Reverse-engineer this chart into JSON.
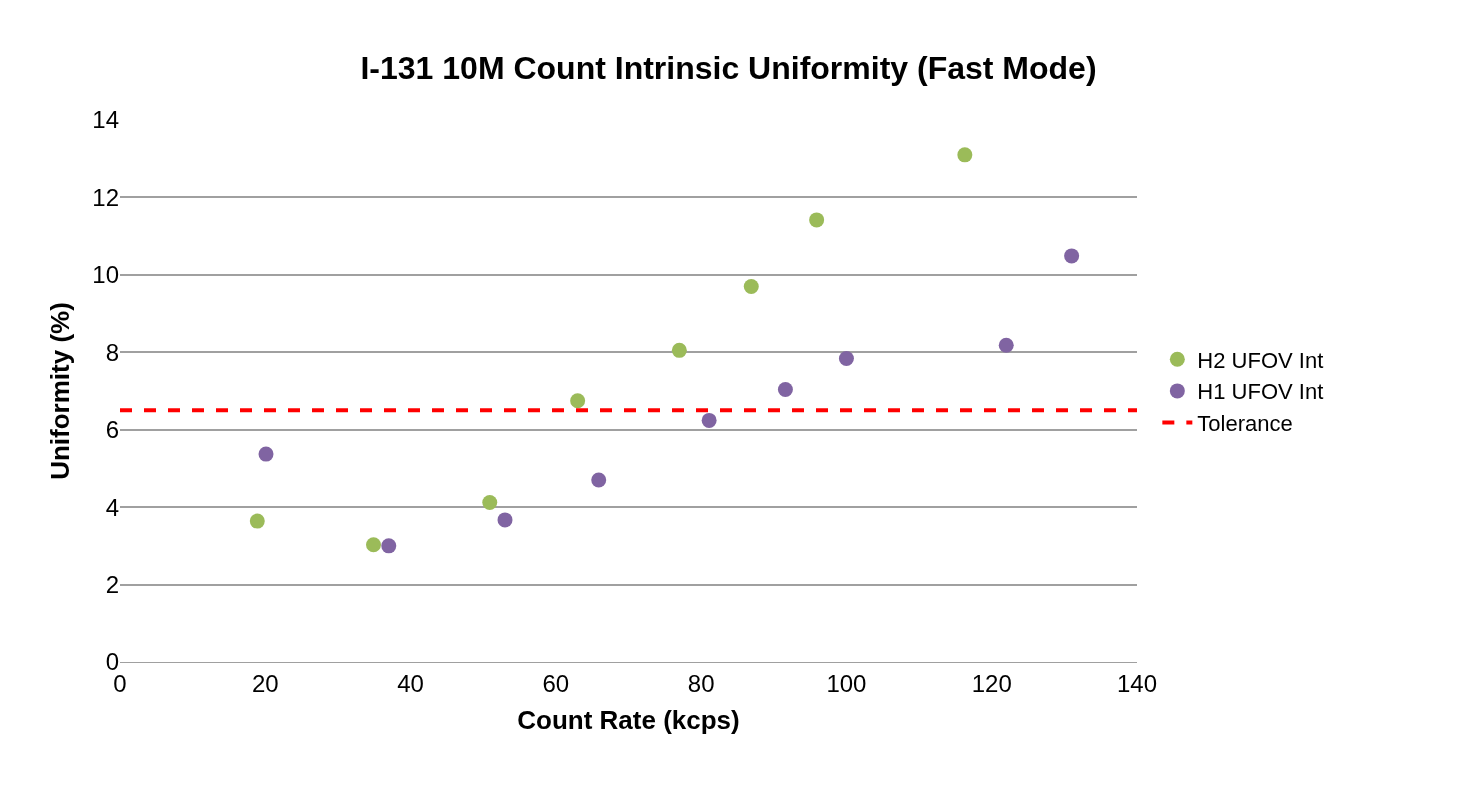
{
  "chart_data": {
    "type": "scatter",
    "title": "I-131 10M Count Intrinsic Uniformity (Fast Mode)",
    "xlabel": "Count Rate (kcps)",
    "ylabel": "Uniformity (%)",
    "xlim": [
      0,
      140
    ],
    "xticks": [
      0,
      20,
      40,
      60,
      80,
      100,
      120,
      140
    ],
    "ylim": [
      0,
      14
    ],
    "yticks": [
      0,
      2,
      4,
      6,
      8,
      10,
      12,
      14
    ],
    "grid": "y",
    "legend": "right",
    "marker": "circle",
    "series": [
      {
        "name": "H2 UFOV Int",
        "color": "#9bbb59",
        "x": [
          18.9,
          34.9,
          50.9,
          63.0,
          77.0,
          86.9,
          95.9,
          116.3
        ],
        "values": [
          3.64,
          3.03,
          4.12,
          6.75,
          8.05,
          9.7,
          11.42,
          13.1
        ]
      },
      {
        "name": "H1 UFOV Int",
        "color": "#8064a2",
        "x": [
          20.1,
          37.0,
          53.0,
          65.9,
          81.1,
          91.6,
          100.0,
          122.0,
          131.0
        ],
        "values": [
          5.37,
          3.0,
          3.67,
          4.7,
          6.24,
          7.04,
          7.84,
          8.18,
          10.49
        ]
      },
      {
        "name": "Tolerance",
        "type": "line",
        "line_style": "dashed",
        "marker": "none",
        "color": "#ff0000",
        "x": [
          0,
          140
        ],
        "values": [
          6.5,
          6.5
        ]
      }
    ]
  }
}
